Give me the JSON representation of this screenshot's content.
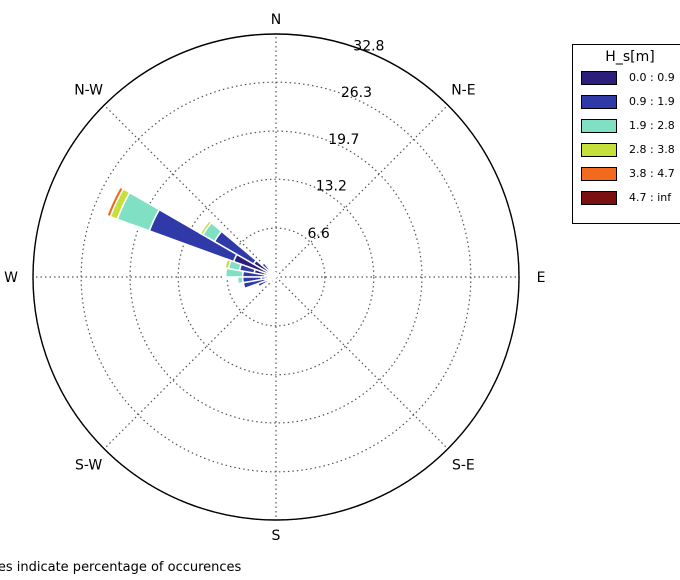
{
  "chart_data": {
    "type": "windrose",
    "direction_labels": [
      "N",
      "N-E",
      "E",
      "S-E",
      "S",
      "S-W",
      "W",
      "N-W"
    ],
    "radial_ticks": [
      "6.6",
      "13.2",
      "19.7",
      "26.3",
      "32.8"
    ],
    "radial_max": 32.8,
    "legend": {
      "title": "H_s[m]",
      "placement": "top-right",
      "entries": [
        {
          "label": "0.0 : 0.9",
          "color": "#2a1f7a"
        },
        {
          "label": "0.9 : 1.9",
          "color": "#2f3aa8"
        },
        {
          "label": "1.9 : 2.8",
          "color": "#7fe0c3"
        },
        {
          "label": "2.8 : 3.8",
          "color": "#c6e03b"
        },
        {
          "label": "3.8 : 4.7",
          "color": "#f26a1b"
        },
        {
          "label": "4.7 : inf",
          "color": "#7a1010"
        }
      ]
    },
    "sector_width_deg": 10,
    "sectors": [
      {
        "direction_deg": 295,
        "cumulative": [
          6.1,
          18.2,
          22.8,
          23.8,
          24.3,
          24.5
        ]
      },
      {
        "direction_deg": 305,
        "cumulative": [
          3.5,
          9.6,
          11.4,
          11.8,
          11.9,
          11.9
        ]
      },
      {
        "direction_deg": 285,
        "cumulative": [
          3.0,
          5.0,
          6.5,
          7.0,
          7.1,
          7.1
        ]
      },
      {
        "direction_deg": 275,
        "cumulative": [
          1.5,
          4.5,
          6.8,
          7.0,
          7.0,
          7.0
        ]
      },
      {
        "direction_deg": 265,
        "cumulative": [
          2.0,
          4.5,
          5.2,
          5.3,
          5.3,
          5.3
        ]
      },
      {
        "direction_deg": 255,
        "cumulative": [
          1.5,
          4.5,
          4.6,
          4.6,
          4.6,
          4.6
        ]
      },
      {
        "direction_deg": 245,
        "cumulative": [
          1.0,
          2.6,
          2.6,
          2.6,
          2.6,
          2.6
        ]
      },
      {
        "direction_deg": 315,
        "cumulative": [
          1.3,
          2.5,
          2.6,
          2.6,
          2.6,
          2.6
        ]
      },
      {
        "direction_deg": 325,
        "cumulative": [
          0.6,
          1.4,
          1.4,
          1.4,
          1.4,
          1.4
        ]
      },
      {
        "direction_deg": 335,
        "cumulative": [
          0.7,
          1.0,
          1.0,
          1.0,
          1.0,
          1.0
        ]
      },
      {
        "direction_deg": 345,
        "cumulative": [
          0.4,
          0.6,
          0.6,
          0.6,
          0.6,
          0.6
        ]
      },
      {
        "direction_deg": 25,
        "cumulative": [
          0.3,
          0.7,
          0.7,
          0.7,
          0.7,
          0.7
        ]
      },
      {
        "direction_deg": 35,
        "cumulative": [
          0.2,
          0.5,
          0.5,
          0.5,
          0.5,
          0.5
        ]
      },
      {
        "direction_deg": 45,
        "cumulative": [
          0.2,
          0.4,
          0.4,
          0.4,
          0.4,
          0.4
        ]
      },
      {
        "direction_deg": 235,
        "cumulative": [
          0.6,
          1.0,
          1.0,
          1.0,
          1.0,
          1.0
        ]
      }
    ],
    "footnote": "lues indicate percentage of occurences"
  }
}
